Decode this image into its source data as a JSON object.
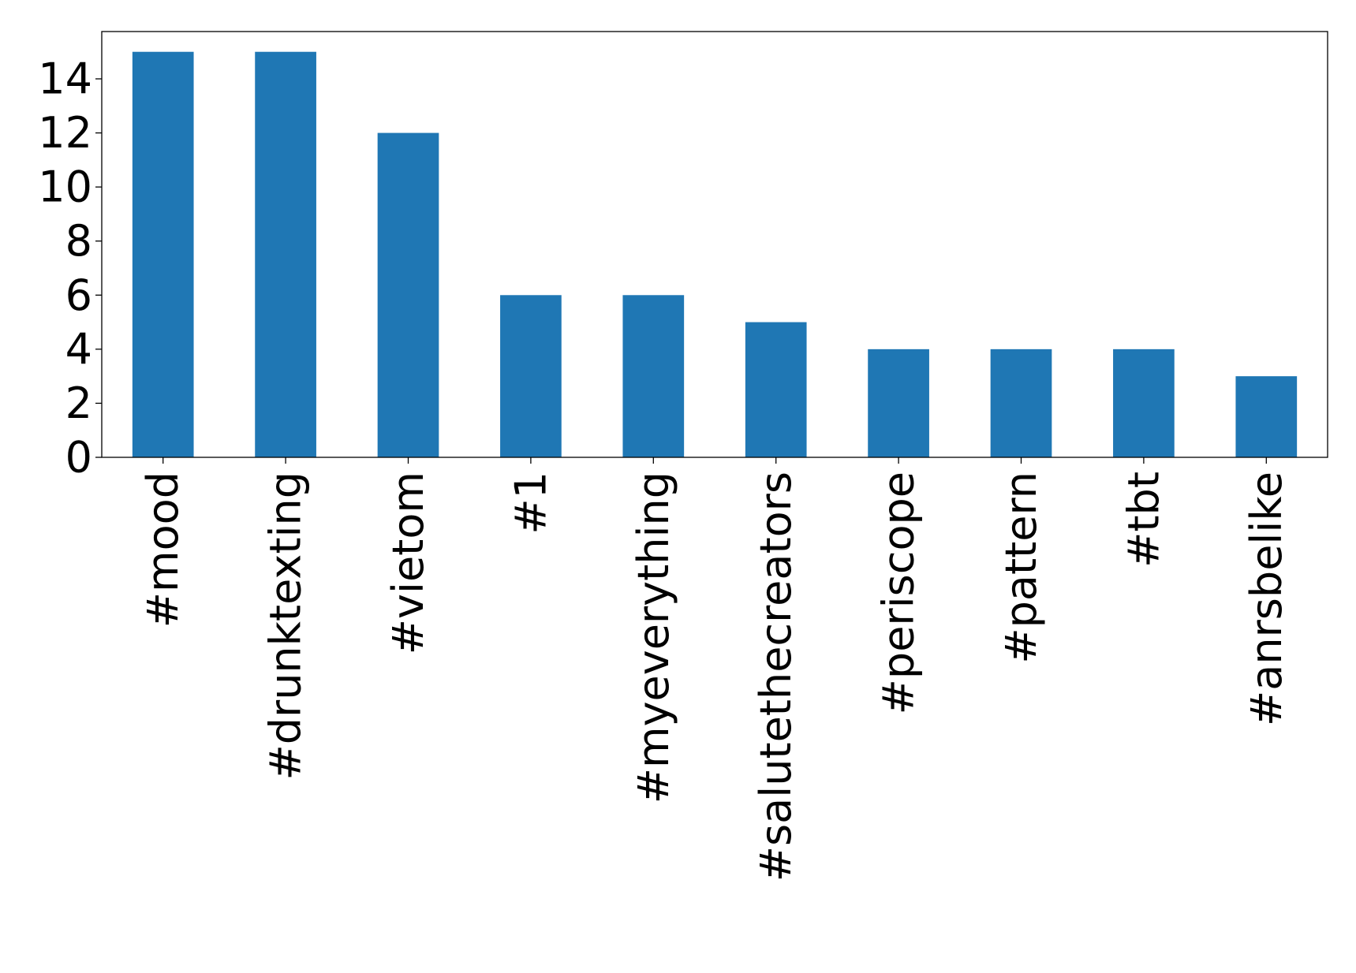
{
  "chart_data": {
    "type": "bar",
    "title": "",
    "xlabel": "",
    "ylabel": "",
    "categories": [
      "#mood",
      "#drunktexting",
      "#vietom",
      "#1",
      "#myeverything",
      "#salutethecreators",
      "#periscope",
      "#pattern",
      "#tbt",
      "#anrsbelike"
    ],
    "values": [
      15,
      15,
      12,
      6,
      6,
      5,
      4,
      4,
      4,
      3
    ],
    "ylim": [
      0,
      15.75
    ],
    "yticks": [
      "0",
      "2",
      "4",
      "6",
      "8",
      "10",
      "12",
      "14"
    ],
    "grid": false,
    "legend": false,
    "bar_color": "#1f77b4"
  }
}
